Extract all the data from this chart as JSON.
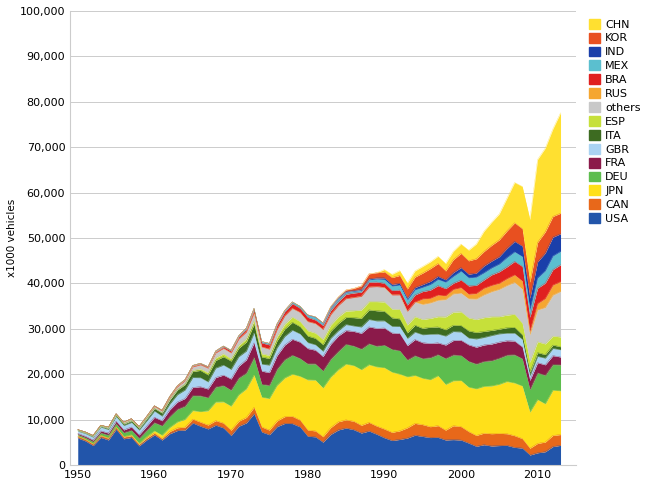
{
  "years": [
    1950,
    1951,
    1952,
    1953,
    1954,
    1955,
    1956,
    1957,
    1958,
    1959,
    1960,
    1961,
    1962,
    1963,
    1964,
    1965,
    1966,
    1967,
    1968,
    1969,
    1970,
    1971,
    1972,
    1973,
    1974,
    1975,
    1976,
    1977,
    1978,
    1979,
    1980,
    1981,
    1982,
    1983,
    1984,
    1985,
    1986,
    1987,
    1988,
    1989,
    1990,
    1991,
    1992,
    1993,
    1994,
    1995,
    1996,
    1997,
    1998,
    1999,
    2000,
    2001,
    2002,
    2003,
    2004,
    2005,
    2006,
    2007,
    2008,
    2009,
    2010,
    2011,
    2012,
    2013
  ],
  "series": {
    "USA": [
      6006,
      5338,
      4321,
      6116,
      5559,
      7920,
      5816,
      6113,
      4258,
      5591,
      6677,
      5543,
      6933,
      7638,
      7752,
      9306,
      8598,
      7999,
      8822,
      8224,
      6547,
      8585,
      9327,
      11350,
      7324,
      6717,
      8497,
      9201,
      9165,
      8434,
      6376,
      6253,
      5074,
      6781,
      7772,
      8185,
      7829,
      7085,
      7526,
      6823,
      6050,
      5438,
      5665,
      5981,
      6610,
      6338,
      6082,
      6136,
      5555,
      5636,
      5542,
      4879,
      4161,
      4510,
      4229,
      4321,
      4365,
      3924,
      3777,
      2246,
      2731,
      2966,
      4105,
      4367
    ],
    "CAN": [
      388,
      350,
      350,
      400,
      400,
      450,
      400,
      400,
      350,
      400,
      398,
      350,
      500,
      600,
      650,
      847,
      900,
      850,
      1000,
      1050,
      1160,
      1100,
      1200,
      1400,
      1100,
      1020,
      1250,
      1500,
      1600,
      1500,
      1370,
      1300,
      1200,
      1500,
      1800,
      1800,
      1850,
      1700,
      1900,
      1800,
      1928,
      1800,
      1900,
      2250,
      2600,
      2600,
      2397,
      2572,
      2171,
      3059,
      2962,
      2534,
      2394,
      2553,
      2711,
      2687,
      2572,
      2578,
      2078,
      1490,
      2071,
      2135,
      2464,
      2380
    ],
    "JPN": [
      32,
      40,
      50,
      70,
      70,
      70,
      100,
      180,
      200,
      300,
      481,
      700,
      876,
      1284,
      1702,
      1876,
      2286,
      3146,
      4086,
      4674,
      5289,
      5810,
      6294,
      7082,
      6552,
      6942,
      7841,
      8514,
      9269,
      9636,
      11043,
      11180,
      10732,
      11112,
      11465,
      12271,
      12260,
      12249,
      12699,
      13026,
      13487,
      13246,
      12499,
      11228,
      10554,
      10196,
      10346,
      10975,
      10050,
      9895,
      10140,
      9777,
      10257,
      10286,
      10512,
      10800,
      11484,
      11596,
      11575,
      7934,
      9625,
      8398,
      9943,
      9630
    ],
    "DEU": [
      306,
      330,
      450,
      550,
      600,
      700,
      850,
      1000,
      1100,
      1400,
      1817,
      2100,
      2400,
      2800,
      2900,
      3300,
      3500,
      2890,
      3300,
      3600,
      3528,
      3700,
      3500,
      3900,
      2840,
      2908,
      3540,
      4030,
      4191,
      3933,
      3521,
      3577,
      3762,
      3945,
      4036,
      4378,
      4313,
      4546,
      4625,
      4564,
      4977,
      5026,
      5155,
      3720,
      4355,
      4360,
      4842,
      4671,
      5727,
      5686,
      5527,
      5692,
      5470,
      5507,
      5570,
      5757,
      5820,
      6213,
      6041,
      4961,
      5906,
      6311,
      5649,
      5718
    ],
    "FRA": [
      257,
      300,
      350,
      420,
      450,
      550,
      600,
      720,
      760,
      900,
      1175,
      1100,
      1500,
      1600,
      1700,
      1800,
      2000,
      1900,
      2100,
      2300,
      2458,
      2600,
      2900,
      3200,
      2900,
      2800,
      3000,
      3200,
      3500,
      3600,
      3378,
      3020,
      3150,
      3300,
      3400,
      3016,
      3214,
      3455,
      3700,
      3920,
      3769,
      3610,
      3770,
      3155,
      3550,
      3475,
      3148,
      2580,
      2954,
      3180,
      3348,
      3628,
      3701,
      3620,
      3666,
      3549,
      3174,
      3016,
      2569,
      2047,
      2227,
      2295,
      1967,
      1735
    ],
    "GBR": [
      522,
      600,
      650,
      834,
      770,
      1000,
      980,
      1000,
      1050,
      1200,
      1353,
      1000,
      1240,
      1610,
      1868,
      2177,
      1981,
      1552,
      2071,
      2188,
      2098,
      2090,
      1921,
      2164,
      1534,
      1648,
      1723,
      1902,
      1980,
      1796,
      1313,
      1185,
      1156,
      1283,
      1130,
      1315,
      1196,
      1393,
      1626,
      1637,
      1566,
      1454,
      1549,
      1568,
      1624,
      1750,
      2020,
      1935,
      1974,
      1973,
      1814,
      1492,
      1820,
      1657,
      1856,
      1803,
      1649,
      1735,
      1649,
      999,
      1393,
      1464,
      1576,
      1597
    ],
    "ITA": [
      128,
      150,
      180,
      200,
      250,
      300,
      350,
      380,
      400,
      500,
      596,
      700,
      890,
      1050,
      1200,
      1350,
      1600,
      1550,
      1700,
      1850,
      1854,
      1900,
      2000,
      1920,
      1600,
      1459,
      1560,
      1640,
      1760,
      1615,
      1445,
      1435,
      1454,
      1574,
      1600,
      1573,
      1831,
      1912,
      2111,
      2237,
      2121,
      1877,
      1687,
      1256,
      1535,
      1421,
      1539,
      1573,
      1402,
      1410,
      1422,
      1580,
      1427,
      1321,
      1143,
      1038,
      1212,
      1284,
      1024,
      843,
      838,
      791,
      747,
      659
    ],
    "ESP": [
      11,
      15,
      20,
      25,
      30,
      40,
      50,
      60,
      70,
      80,
      43,
      50,
      70,
      100,
      150,
      200,
      350,
      480,
      560,
      650,
      490,
      600,
      700,
      800,
      700,
      670,
      870,
      1070,
      1150,
      1130,
      1182,
      1143,
      1164,
      1355,
      1450,
      1419,
      1530,
      1830,
      1834,
      2013,
      2053,
      1937,
      2071,
      1709,
      1880,
      1959,
      1953,
      2266,
      2826,
      2853,
      3033,
      2850,
      2855,
      3030,
      3012,
      2752,
      2777,
      2890,
      2542,
      2170,
      2388,
      2354,
      1979,
      2163
    ],
    "others": [
      200,
      200,
      200,
      200,
      250,
      300,
      300,
      350,
      300,
      350,
      400,
      400,
      500,
      600,
      700,
      800,
      900,
      1000,
      1100,
      1200,
      1300,
      1400,
      1500,
      1700,
      1500,
      1400,
      1600,
      1800,
      1900,
      2000,
      2000,
      2100,
      2200,
      2300,
      2500,
      2700,
      2900,
      3000,
      3200,
      3300,
      3200,
      3100,
      3200,
      3000,
      3200,
      3300,
      3400,
      3600,
      3800,
      4000,
      4100,
      4200,
      4500,
      5000,
      5500,
      6000,
      6500,
      7000,
      7500,
      6000,
      7000,
      8000,
      9000,
      10000
    ],
    "RUS": [
      0,
      0,
      0,
      0,
      0,
      0,
      0,
      0,
      0,
      0,
      0,
      0,
      0,
      0,
      0,
      0,
      0,
      0,
      0,
      0,
      0,
      0,
      0,
      0,
      0,
      0,
      0,
      0,
      0,
      0,
      0,
      0,
      0,
      0,
      0,
      0,
      0,
      0,
      0,
      0,
      0,
      0,
      0,
      0,
      0,
      1205,
      1020,
      1160,
      840,
      1010,
      1202,
      1022,
      1220,
      1477,
      1390,
      1354,
      1508,
      1660,
      1791,
      725,
      1404,
      1989,
      2232,
      2175
    ],
    "BRA": [
      0,
      0,
      0,
      5,
      10,
      10,
      30,
      60,
      60,
      61,
      133,
      145,
      192,
      174,
      184,
      222,
      224,
      225,
      279,
      353,
      416,
      516,
      622,
      731,
      900,
      930,
      986,
      921,
      1065,
      906,
      933,
      780,
      860,
      896,
      864,
      967,
      1000,
      920,
      1068,
      1013,
      914,
      960,
      1074,
      1390,
      1580,
      1629,
      1804,
      2068,
      1581,
      1351,
      1682,
      1818,
      1793,
      1827,
      2317,
      2531,
      2612,
      2970,
      3215,
      3182,
      3382,
      3406,
      3402,
      3713
    ],
    "MEX": [
      0,
      0,
      0,
      0,
      0,
      0,
      0,
      0,
      0,
      10,
      25,
      30,
      50,
      60,
      80,
      100,
      110,
      120,
      140,
      160,
      189,
      210,
      270,
      290,
      290,
      340,
      280,
      280,
      380,
      445,
      457,
      597,
      472,
      590,
      660,
      459,
      341,
      395,
      513,
      652,
      821,
      989,
      1080,
      1098,
      1119,
      940,
      1218,
      1360,
      1408,
      1530,
      1936,
      1771,
      1805,
      1576,
      1526,
      1684,
      2046,
      2095,
      2168,
      1561,
      2260,
      2681,
      3001,
      2933
    ],
    "IND": [
      0,
      0,
      0,
      0,
      0,
      0,
      0,
      0,
      0,
      0,
      0,
      0,
      0,
      0,
      0,
      0,
      0,
      0,
      0,
      0,
      0,
      0,
      0,
      0,
      0,
      0,
      0,
      0,
      0,
      0,
      100,
      100,
      120,
      130,
      150,
      150,
      170,
      200,
      230,
      250,
      362,
      375,
      400,
      400,
      500,
      600,
      700,
      690,
      530,
      825,
      801,
      812,
      895,
      1508,
      1511,
      1638,
      2020,
      2315,
      2315,
      2632,
      3536,
      3927,
      4145,
      3880
    ],
    "KOR": [
      0,
      0,
      0,
      0,
      0,
      0,
      0,
      0,
      0,
      0,
      0,
      0,
      0,
      0,
      0,
      0,
      0,
      0,
      0,
      0,
      0,
      0,
      0,
      0,
      0,
      0,
      0,
      0,
      0,
      0,
      0,
      0,
      0,
      150,
      200,
      340,
      470,
      790,
      1083,
      1130,
      1322,
      1498,
      1730,
      2050,
      2312,
      2526,
      2813,
      2818,
      1954,
      2843,
      3115,
      2946,
      3148,
      3178,
      3469,
      3699,
      3840,
      4086,
      3827,
      3513,
      4272,
      4657,
      4558,
      4521
    ],
    "CHN": [
      0,
      0,
      0,
      0,
      0,
      0,
      0,
      0,
      0,
      0,
      0,
      0,
      0,
      0,
      0,
      0,
      0,
      0,
      0,
      0,
      0,
      0,
      0,
      0,
      0,
      0,
      0,
      0,
      0,
      0,
      0,
      0,
      0,
      0,
      0,
      0,
      0,
      0,
      0,
      0,
      509,
      709,
      1062,
      1297,
      1353,
      1452,
      1475,
      1582,
      1628,
      1830,
      2069,
      2334,
      3252,
      4443,
      5070,
      5708,
      7188,
      8882,
      9299,
      13791,
      18265,
      18418,
      19272,
      22116
    ]
  },
  "colors": {
    "USA": "#2255aa",
    "CAN": "#e8681a",
    "JPN": "#ffe01a",
    "DEU": "#5dbd4e",
    "FRA": "#8b1a4a",
    "GBR": "#aad3f2",
    "ITA": "#3d6b21",
    "ESP": "#c6e03a",
    "others": "#c8c8c8",
    "RUS": "#f5a630",
    "BRA": "#e02020",
    "MEX": "#5bbfcf",
    "IND": "#1a3faa",
    "KOR": "#e85020",
    "CHN": "#ffe030"
  },
  "stack_order": [
    "USA",
    "CAN",
    "JPN",
    "DEU",
    "FRA",
    "GBR",
    "ITA",
    "ESP",
    "others",
    "RUS",
    "BRA",
    "MEX",
    "IND",
    "KOR",
    "CHN"
  ],
  "legend_order": [
    "CHN",
    "KOR",
    "IND",
    "MEX",
    "BRA",
    "RUS",
    "others",
    "ESP",
    "ITA",
    "GBR",
    "FRA",
    "DEU",
    "JPN",
    "CAN",
    "USA"
  ],
  "ylabel": "x1000 vehicles",
  "ylim": [
    0,
    100000
  ],
  "yticks": [
    0,
    10000,
    20000,
    30000,
    40000,
    50000,
    60000,
    70000,
    80000,
    90000,
    100000
  ],
  "ytick_labels": [
    "0",
    "10,000",
    "20,000",
    "30,000",
    "40,000",
    "50,000",
    "60,000",
    "70,000",
    "80,000",
    "90,000",
    "100,000"
  ],
  "xlim": [
    1949,
    2015
  ],
  "xticks": [
    1950,
    1960,
    1970,
    1980,
    1990,
    2000,
    2010
  ]
}
